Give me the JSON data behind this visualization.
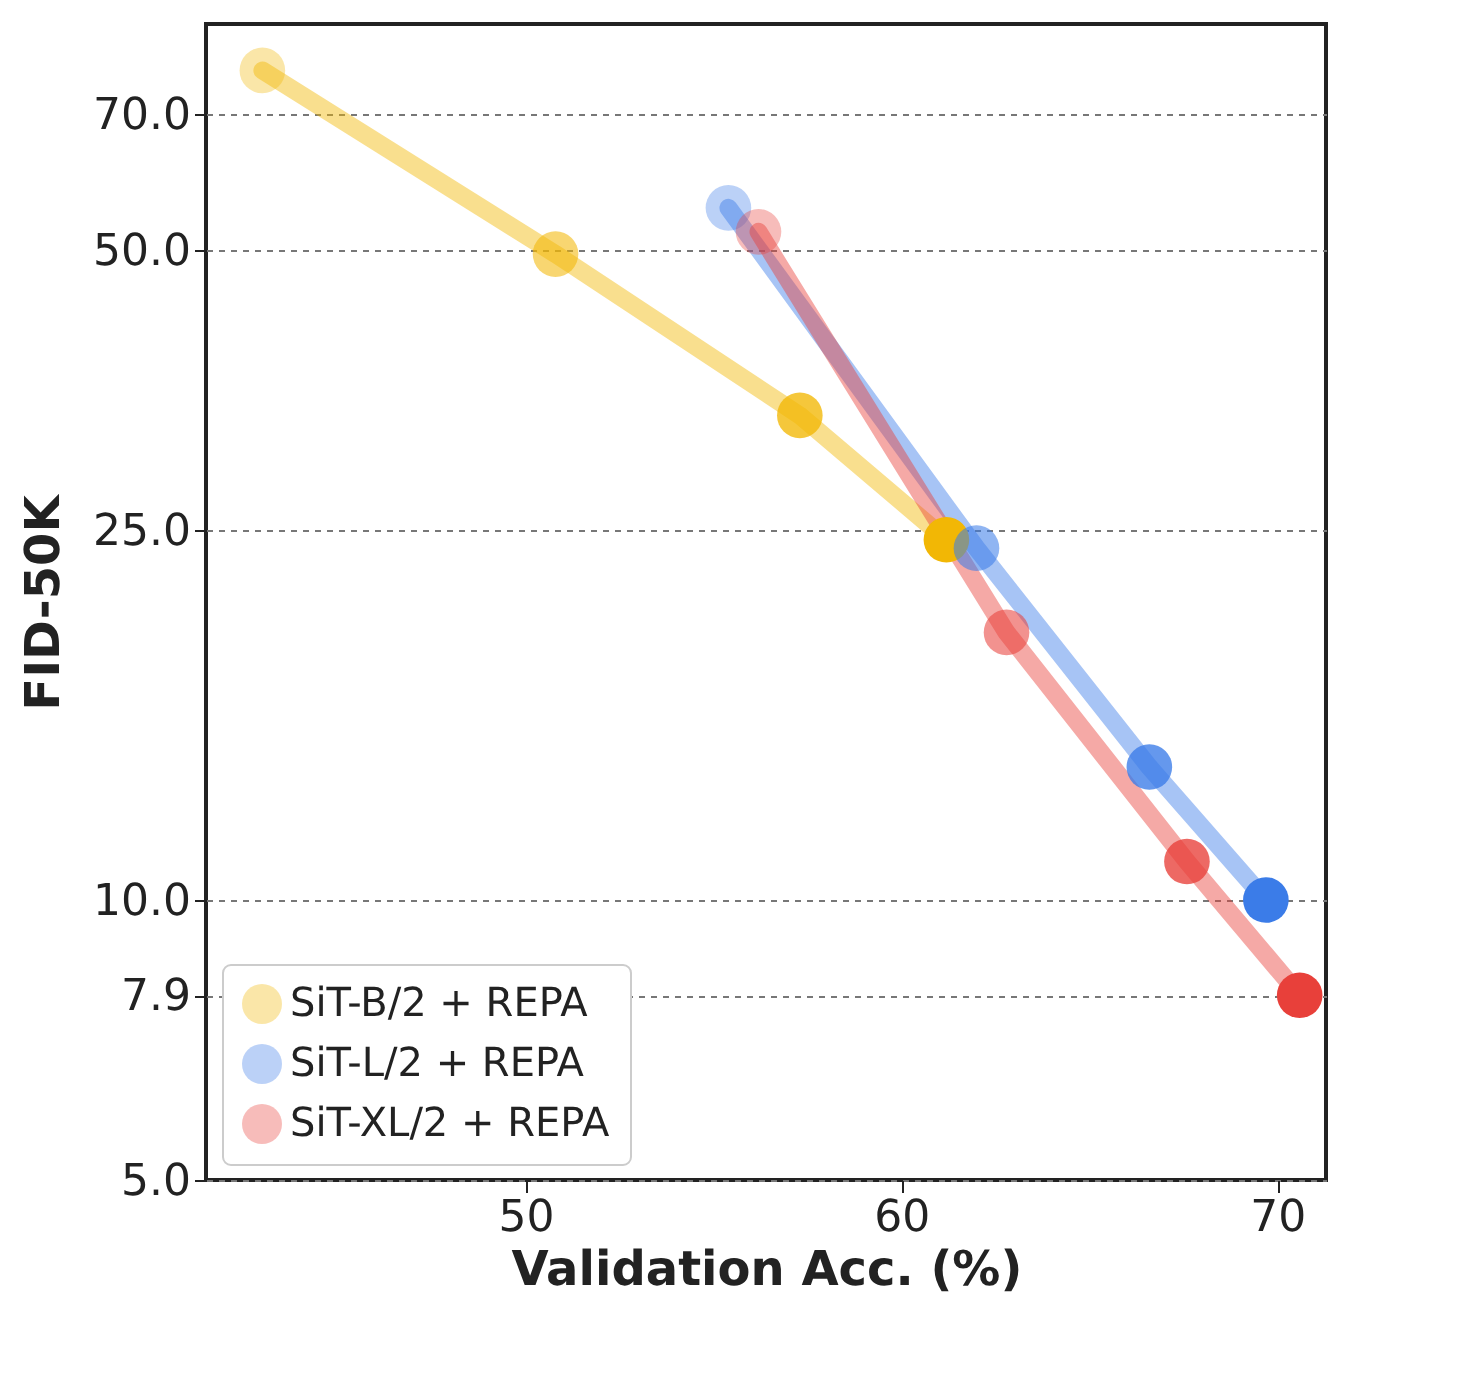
{
  "chart_data": {
    "type": "line",
    "xlabel": "Validation Acc. (%)",
    "ylabel": "FID-50K",
    "xlim": [
      41.5,
      71.3
    ],
    "xticks": [
      50,
      60,
      70
    ],
    "ylim": [
      5.0,
      87.5
    ],
    "yticks": [
      {
        "value": 5,
        "label": "5.0"
      },
      7.9,
      {
        "value": 10,
        "label": "10.0"
      },
      {
        "value": 25,
        "label": "25.0"
      },
      {
        "value": 50,
        "label": "50.0"
      },
      {
        "value": 70,
        "label": "70.0"
      }
    ],
    "log": "y",
    "grid": "y",
    "legend": "bottom left",
    "marker": "circle",
    "line_style": "solid",
    "series": [
      {
        "name": "SiT-B/2 + REPA",
        "color": "#f2b705",
        "x": [
          43.0,
          50.8,
          57.3,
          61.2
        ],
        "values": [
          78,
          49.5,
          33.2,
          24.4
        ]
      },
      {
        "name": "SiT-L/2 + REPA",
        "color": "#3b7ce8",
        "x": [
          55.4,
          62.0,
          66.6,
          69.7
        ],
        "values": [
          55.5,
          23.9,
          13.9,
          10.0
        ]
      },
      {
        "name": "SiT-XL/2 + REPA",
        "color": "#e8403a",
        "x": [
          56.2,
          62.8,
          67.6,
          70.6
        ],
        "values": [
          52.3,
          19.4,
          11.0,
          7.9
        ]
      }
    ]
  }
}
